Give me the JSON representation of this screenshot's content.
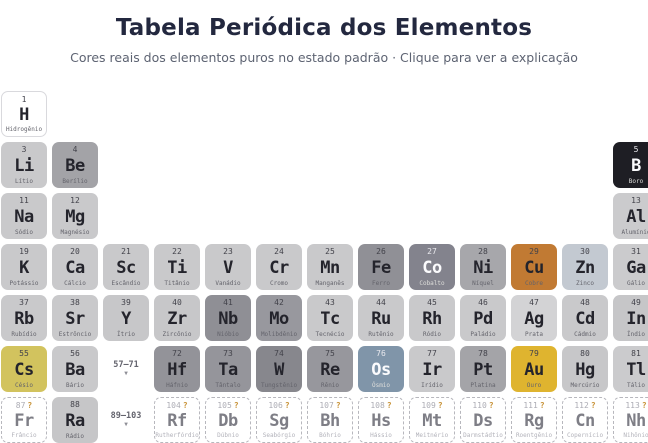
{
  "header": {
    "title": "Tabela Periódica dos Elementos",
    "subtitle": "Cores reais dos elementos puros no estado padrão · Clique para ver a explicação"
  },
  "colors": {
    "title_text": "#23283f",
    "subtitle_text": "#5d6372",
    "tile_default": "#c9c9cb",
    "unknown_question_mark": "#c9953c",
    "copper": "#c17a33",
    "gold": "#dfb42f",
    "cesium_yellow": "#d2c35e",
    "osmium_blue": "#8095a9",
    "cobalt_slate": "#83838d",
    "boron_black": "#1e1e24"
  },
  "table": {
    "question_mark": "?",
    "placeholders": [
      {
        "id": "lanthanide-range",
        "label": "57–71",
        "arrow": "▼",
        "row": 6,
        "col": 3
      },
      {
        "id": "actinide-range",
        "label": "89–103",
        "arrow": "▼",
        "row": 7,
        "col": 3
      }
    ],
    "elements": [
      {
        "number": "1",
        "symbol": "H",
        "name": "Hidrogênio",
        "row": 1,
        "col": 1,
        "bg": "#ffffff",
        "variant": "outlined"
      },
      {
        "number": "3",
        "symbol": "Li",
        "name": "Lítio",
        "row": 2,
        "col": 1,
        "bg": "#c9c9cb",
        "variant": "default"
      },
      {
        "number": "4",
        "symbol": "Be",
        "name": "Berílio",
        "row": 2,
        "col": 2,
        "bg": "#a3a3a7",
        "variant": "default"
      },
      {
        "number": "5",
        "symbol": "B",
        "name": "Boro",
        "row": 2,
        "col": 13,
        "bg": "#1e1e24",
        "variant": "inverse"
      },
      {
        "number": "11",
        "symbol": "Na",
        "name": "Sódio",
        "row": 3,
        "col": 1,
        "bg": "#c9c9cb",
        "variant": "default"
      },
      {
        "number": "12",
        "symbol": "Mg",
        "name": "Magnésio",
        "row": 3,
        "col": 2,
        "bg": "#c9c9cb",
        "variant": "default"
      },
      {
        "number": "13",
        "symbol": "Al",
        "name": "Alumínio",
        "row": 3,
        "col": 13,
        "bg": "#cbcbcd",
        "variant": "default"
      },
      {
        "number": "19",
        "symbol": "K",
        "name": "Potássio",
        "row": 4,
        "col": 1,
        "bg": "#c9c9cb",
        "variant": "default"
      },
      {
        "number": "20",
        "symbol": "Ca",
        "name": "Cálcio",
        "row": 4,
        "col": 2,
        "bg": "#c9c9cb",
        "variant": "default"
      },
      {
        "number": "21",
        "symbol": "Sc",
        "name": "Escândio",
        "row": 4,
        "col": 3,
        "bg": "#c9c9cb",
        "variant": "default"
      },
      {
        "number": "22",
        "symbol": "Ti",
        "name": "Titânio",
        "row": 4,
        "col": 4,
        "bg": "#c9c9cb",
        "variant": "default"
      },
      {
        "number": "23",
        "symbol": "V",
        "name": "Vanádio",
        "row": 4,
        "col": 5,
        "bg": "#c9c9cb",
        "variant": "default"
      },
      {
        "number": "24",
        "symbol": "Cr",
        "name": "Cromo",
        "row": 4,
        "col": 6,
        "bg": "#c9c9cb",
        "variant": "default"
      },
      {
        "number": "25",
        "symbol": "Mn",
        "name": "Manganês",
        "row": 4,
        "col": 7,
        "bg": "#c9c9cb",
        "variant": "default"
      },
      {
        "number": "26",
        "symbol": "Fe",
        "name": "Ferro",
        "row": 4,
        "col": 8,
        "bg": "#909096",
        "variant": "default"
      },
      {
        "number": "27",
        "symbol": "Co",
        "name": "Cobalto",
        "row": 4,
        "col": 9,
        "bg": "#83838d",
        "variant": "inverse"
      },
      {
        "number": "28",
        "symbol": "Ni",
        "name": "Níquel",
        "row": 4,
        "col": 10,
        "bg": "#a7a7ab",
        "variant": "default"
      },
      {
        "number": "29",
        "symbol": "Cu",
        "name": "Cobre",
        "row": 4,
        "col": 11,
        "bg": "#c17a33",
        "variant": "default"
      },
      {
        "number": "30",
        "symbol": "Zn",
        "name": "Zinco",
        "row": 4,
        "col": 12,
        "bg": "#c3c9d1",
        "variant": "default"
      },
      {
        "number": "31",
        "symbol": "Ga",
        "name": "Gálio",
        "row": 4,
        "col": 13,
        "bg": "#cbcbcd",
        "variant": "default"
      },
      {
        "number": "37",
        "symbol": "Rb",
        "name": "Rubídio",
        "row": 5,
        "col": 1,
        "bg": "#c9c9cb",
        "variant": "default"
      },
      {
        "number": "38",
        "symbol": "Sr",
        "name": "Estrôncio",
        "row": 5,
        "col": 2,
        "bg": "#c9c9cb",
        "variant": "default"
      },
      {
        "number": "39",
        "symbol": "Y",
        "name": "Ítrio",
        "row": 5,
        "col": 3,
        "bg": "#c7c7c9",
        "variant": "default"
      },
      {
        "number": "40",
        "symbol": "Zr",
        "name": "Zircônio",
        "row": 5,
        "col": 4,
        "bg": "#c7c7c9",
        "variant": "default"
      },
      {
        "number": "41",
        "symbol": "Nb",
        "name": "Nióbio",
        "row": 5,
        "col": 5,
        "bg": "#8f8f95",
        "variant": "default"
      },
      {
        "number": "42",
        "symbol": "Mo",
        "name": "Molibdênio",
        "row": 5,
        "col": 6,
        "bg": "#98989e",
        "variant": "default"
      },
      {
        "number": "43",
        "symbol": "Tc",
        "name": "Tecnécio",
        "row": 5,
        "col": 7,
        "bg": "#c9c9cb",
        "variant": "default"
      },
      {
        "number": "44",
        "symbol": "Ru",
        "name": "Rutênio",
        "row": 5,
        "col": 8,
        "bg": "#c9c9cb",
        "variant": "default"
      },
      {
        "number": "45",
        "symbol": "Rh",
        "name": "Ródio",
        "row": 5,
        "col": 9,
        "bg": "#c9c9cb",
        "variant": "default"
      },
      {
        "number": "46",
        "symbol": "Pd",
        "name": "Paládio",
        "row": 5,
        "col": 10,
        "bg": "#c9c9cb",
        "variant": "default"
      },
      {
        "number": "47",
        "symbol": "Ag",
        "name": "Prata",
        "row": 5,
        "col": 11,
        "bg": "#d3d3d5",
        "variant": "default"
      },
      {
        "number": "48",
        "symbol": "Cd",
        "name": "Cádmio",
        "row": 5,
        "col": 12,
        "bg": "#c9c9cb",
        "variant": "default"
      },
      {
        "number": "49",
        "symbol": "In",
        "name": "Índio",
        "row": 5,
        "col": 13,
        "bg": "#c6c6c8",
        "variant": "default"
      },
      {
        "number": "55",
        "symbol": "Cs",
        "name": "Césio",
        "row": 6,
        "col": 1,
        "bg": "#d2c35e",
        "variant": "default"
      },
      {
        "number": "56",
        "symbol": "Ba",
        "name": "Bário",
        "row": 6,
        "col": 2,
        "bg": "#c9c9cb",
        "variant": "default"
      },
      {
        "number": "72",
        "symbol": "Hf",
        "name": "Háfnio",
        "row": 6,
        "col": 4,
        "bg": "#939399",
        "variant": "default"
      },
      {
        "number": "73",
        "symbol": "Ta",
        "name": "Tântalo",
        "row": 6,
        "col": 5,
        "bg": "#95959b",
        "variant": "default"
      },
      {
        "number": "74",
        "symbol": "W",
        "name": "Tungstênio",
        "row": 6,
        "col": 6,
        "bg": "#87878d",
        "variant": "default"
      },
      {
        "number": "75",
        "symbol": "Re",
        "name": "Rênio",
        "row": 6,
        "col": 7,
        "bg": "#97979d",
        "variant": "default"
      },
      {
        "number": "76",
        "symbol": "Os",
        "name": "Ósmio",
        "row": 6,
        "col": 8,
        "bg": "#8095a9",
        "variant": "inverse"
      },
      {
        "number": "77",
        "symbol": "Ir",
        "name": "Irídio",
        "row": 6,
        "col": 9,
        "bg": "#c9c9cb",
        "variant": "default"
      },
      {
        "number": "78",
        "symbol": "Pt",
        "name": "Platina",
        "row": 6,
        "col": 10,
        "bg": "#a4a4a8",
        "variant": "default"
      },
      {
        "number": "79",
        "symbol": "Au",
        "name": "Ouro",
        "row": 6,
        "col": 11,
        "bg": "#dfb42f",
        "variant": "default"
      },
      {
        "number": "80",
        "symbol": "Hg",
        "name": "Mercúrio",
        "row": 6,
        "col": 12,
        "bg": "#c7c7c9",
        "variant": "default"
      },
      {
        "number": "81",
        "symbol": "Tl",
        "name": "Tálio",
        "row": 6,
        "col": 13,
        "bg": "#cbcbcd",
        "variant": "default"
      },
      {
        "number": "87",
        "symbol": "Fr",
        "name": "Frâncio",
        "row": 7,
        "col": 1,
        "bg": "#ffffff",
        "variant": "unknown"
      },
      {
        "number": "88",
        "symbol": "Ra",
        "name": "Rádio",
        "row": 7,
        "col": 2,
        "bg": "#c6c6c8",
        "variant": "default"
      },
      {
        "number": "104",
        "symbol": "Rf",
        "name": "Rutherfórdio",
        "row": 7,
        "col": 4,
        "bg": "#ffffff",
        "variant": "unknown"
      },
      {
        "number": "105",
        "symbol": "Db",
        "name": "Dúbnio",
        "row": 7,
        "col": 5,
        "bg": "#ffffff",
        "variant": "unknown"
      },
      {
        "number": "106",
        "symbol": "Sg",
        "name": "Seabórgio",
        "row": 7,
        "col": 6,
        "bg": "#ffffff",
        "variant": "unknown"
      },
      {
        "number": "107",
        "symbol": "Bh",
        "name": "Bóhrio",
        "row": 7,
        "col": 7,
        "bg": "#ffffff",
        "variant": "unknown"
      },
      {
        "number": "108",
        "symbol": "Hs",
        "name": "Hássio",
        "row": 7,
        "col": 8,
        "bg": "#ffffff",
        "variant": "unknown"
      },
      {
        "number": "109",
        "symbol": "Mt",
        "name": "Meitnério",
        "row": 7,
        "col": 9,
        "bg": "#ffffff",
        "variant": "unknown"
      },
      {
        "number": "110",
        "symbol": "Ds",
        "name": "Darmstádtio",
        "row": 7,
        "col": 10,
        "bg": "#ffffff",
        "variant": "unknown"
      },
      {
        "number": "111",
        "symbol": "Rg",
        "name": "Roentgênio",
        "row": 7,
        "col": 11,
        "bg": "#ffffff",
        "variant": "unknown"
      },
      {
        "number": "112",
        "symbol": "Cn",
        "name": "Copernício",
        "row": 7,
        "col": 12,
        "bg": "#ffffff",
        "variant": "unknown"
      },
      {
        "number": "113",
        "symbol": "Nh",
        "name": "Nihônio",
        "row": 7,
        "col": 13,
        "bg": "#ffffff",
        "variant": "unknown"
      }
    ]
  }
}
